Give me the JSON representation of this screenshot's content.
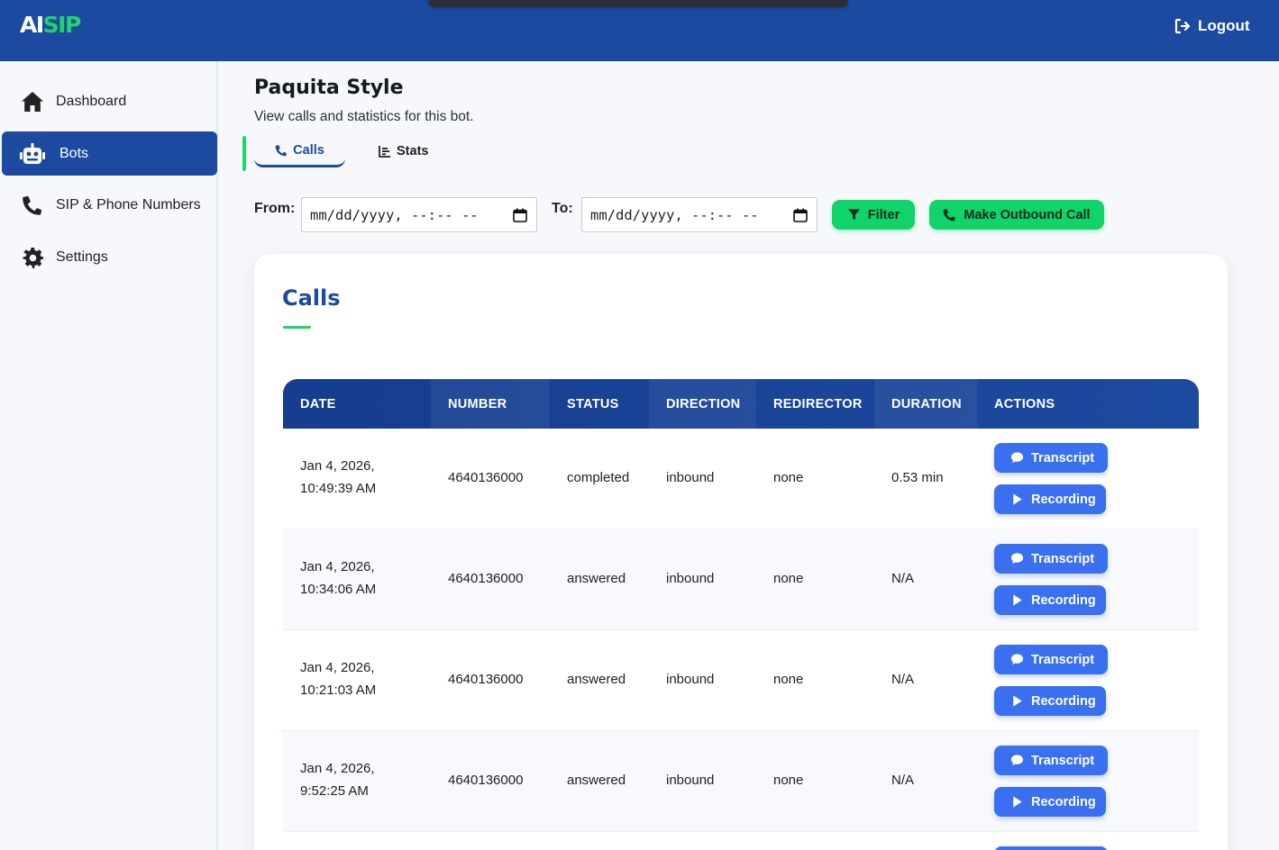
{
  "app": {
    "logo_ai": "AI",
    "logo_sip": "SIP",
    "logout_label": "Logout"
  },
  "sidebar": {
    "items": [
      {
        "label": "Dashboard",
        "icon": "home-icon"
      },
      {
        "label": "Bots",
        "icon": "robot-icon",
        "active": true
      },
      {
        "label": "SIP & Phone Numbers",
        "icon": "phone-icon"
      },
      {
        "label": "Settings",
        "icon": "gear-icon"
      }
    ]
  },
  "page": {
    "title": "Paquita Style",
    "subtitle": "View calls and statistics for this bot.",
    "tabs": [
      {
        "label": "Calls",
        "icon": "phone-icon",
        "active": true
      },
      {
        "label": "Stats",
        "icon": "chart-icon"
      }
    ]
  },
  "filters": {
    "from_label": "From:",
    "to_label": "To:",
    "from_value": "mm/dd/yyyy, --:-- --",
    "to_value": "mm/dd/yyyy, --:-- --",
    "filter_label": "Filter",
    "outbound_label": "Make Outbound Call"
  },
  "calls": {
    "title": "Calls",
    "columns": [
      "DATE",
      "NUMBER",
      "STATUS",
      "DIRECTION",
      "REDIRECTOR",
      "DURATION",
      "ACTIONS"
    ],
    "rows": [
      {
        "date_line1": "Jan 4, 2026,",
        "date_line2": "10:49:39 AM",
        "number": "4640136000",
        "status": "completed",
        "direction": "inbound",
        "redirector": "none",
        "duration": "0.53 min"
      },
      {
        "date_line1": "Jan 4, 2026,",
        "date_line2": "10:34:06 AM",
        "number": "4640136000",
        "status": "answered",
        "direction": "inbound",
        "redirector": "none",
        "duration": "N/A"
      },
      {
        "date_line1": "Jan 4, 2026,",
        "date_line2": "10:21:03 AM",
        "number": "4640136000",
        "status": "answered",
        "direction": "inbound",
        "redirector": "none",
        "duration": "N/A"
      },
      {
        "date_line1": "Jan 4, 2026,",
        "date_line2": "9:52:25 AM",
        "number": "4640136000",
        "status": "answered",
        "direction": "inbound",
        "redirector": "none",
        "duration": "N/A"
      }
    ],
    "transcript_label": "Transcript",
    "recording_label": "Recording"
  },
  "colors": {
    "primary": "#1c4aa0",
    "accent": "#22d36b",
    "action": "#3a6ff0"
  }
}
